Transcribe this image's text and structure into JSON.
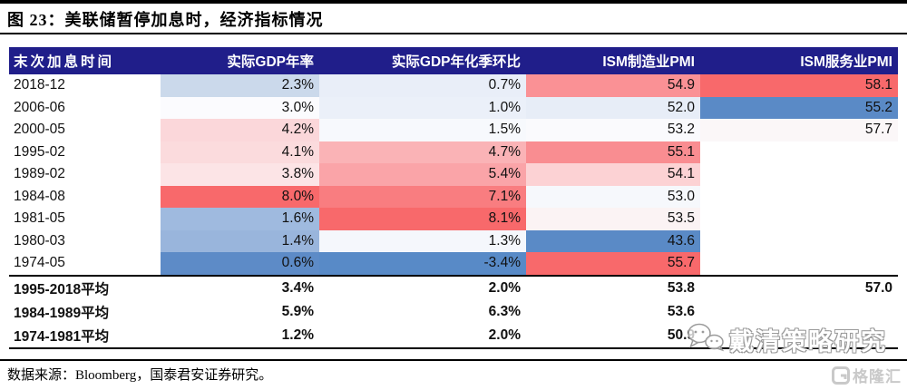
{
  "title": "图 23：美联储暂停加息时，经济指标情况",
  "source_note": "数据来源：Bloomberg，国泰君安证券研究。",
  "watermark": {
    "icon": "wechat-icon",
    "text": "戴清策略研究"
  },
  "brand": {
    "icon": "gelonghui-icon",
    "text": "格隆汇"
  },
  "colors": {
    "header_bg": "#201E8A",
    "heat_max_red": "#F8696B",
    "heat_mid_white": "#FCFCFF",
    "heat_min_blue": "#5A8AC6",
    "rule_black": "#000000"
  },
  "table": {
    "columns": [
      "末次加息时间",
      "实际GDP年率",
      "实际GDP年化季环比",
      "ISM制造业PMI",
      "ISM服务业PMI"
    ],
    "rows": [
      {
        "date": "2018-12",
        "cells": [
          {
            "v": "2.3%",
            "bg": "#CBD9EB"
          },
          {
            "v": "0.7%",
            "bg": "#E9EEF8"
          },
          {
            "v": "54.9",
            "bg": "#FA9195"
          },
          {
            "v": "58.1",
            "bg": "#F8696B"
          }
        ]
      },
      {
        "date": "2006-06",
        "cells": [
          {
            "v": "3.0%",
            "bg": "#FBFBFE"
          },
          {
            "v": "1.0%",
            "bg": "#EBF0F9"
          },
          {
            "v": "52.0",
            "bg": "#E7EDF7"
          },
          {
            "v": "55.2",
            "bg": "#5A8AC6"
          }
        ]
      },
      {
        "date": "2000-05",
        "cells": [
          {
            "v": "4.2%",
            "bg": "#FBD7DA"
          },
          {
            "v": "1.5%",
            "bg": "#F7F9FD"
          },
          {
            "v": "53.2",
            "bg": "#FAFAFD"
          },
          {
            "v": "57.7",
            "bg": "#FBF7F8"
          }
        ]
      },
      {
        "date": "1995-02",
        "cells": [
          {
            "v": "4.1%",
            "bg": "#FBDBDD"
          },
          {
            "v": "4.7%",
            "bg": "#FAB3B6"
          },
          {
            "v": "55.1",
            "bg": "#F98D91"
          },
          {
            "v": "",
            "bg": ""
          }
        ]
      },
      {
        "date": "1989-02",
        "cells": [
          {
            "v": "3.8%",
            "bg": "#FCE4E6"
          },
          {
            "v": "5.4%",
            "bg": "#FAA4A8"
          },
          {
            "v": "54.1",
            "bg": "#FCD2D4"
          },
          {
            "v": "",
            "bg": ""
          }
        ]
      },
      {
        "date": "1984-08",
        "cells": [
          {
            "v": "8.0%",
            "bg": "#F8696B"
          },
          {
            "v": "7.1%",
            "bg": "#F97D80"
          },
          {
            "v": "53.0",
            "bg": "#F6F8FC"
          },
          {
            "v": "",
            "bg": ""
          }
        ]
      },
      {
        "date": "1981-05",
        "cells": [
          {
            "v": "1.6%",
            "bg": "#9FBADF"
          },
          {
            "v": "8.1%",
            "bg": "#F8696B"
          },
          {
            "v": "53.5",
            "bg": "#FBF3F4"
          },
          {
            "v": "",
            "bg": ""
          }
        ]
      },
      {
        "date": "1980-03",
        "cells": [
          {
            "v": "1.4%",
            "bg": "#99B5DC"
          },
          {
            "v": "1.3%",
            "bg": "#F5F7FC"
          },
          {
            "v": "43.6",
            "bg": "#5A8AC6"
          },
          {
            "v": "",
            "bg": ""
          }
        ]
      },
      {
        "date": "1974-05",
        "cells": [
          {
            "v": "0.6%",
            "bg": "#5D8BC7"
          },
          {
            "v": "-3.4%",
            "bg": "#588AC7"
          },
          {
            "v": "55.7",
            "bg": "#F8696B"
          },
          {
            "v": "",
            "bg": ""
          }
        ]
      }
    ],
    "summary_rows": [
      {
        "date": "1995-2018平均",
        "cells": [
          "3.4%",
          "2.0%",
          "53.8",
          "57.0"
        ]
      },
      {
        "date": "1984-1989平均",
        "cells": [
          "5.9%",
          "6.3%",
          "53.6",
          ""
        ]
      },
      {
        "date": "1974-1981平均",
        "cells": [
          "1.2%",
          "2.0%",
          "50.9",
          ""
        ]
      }
    ]
  }
}
